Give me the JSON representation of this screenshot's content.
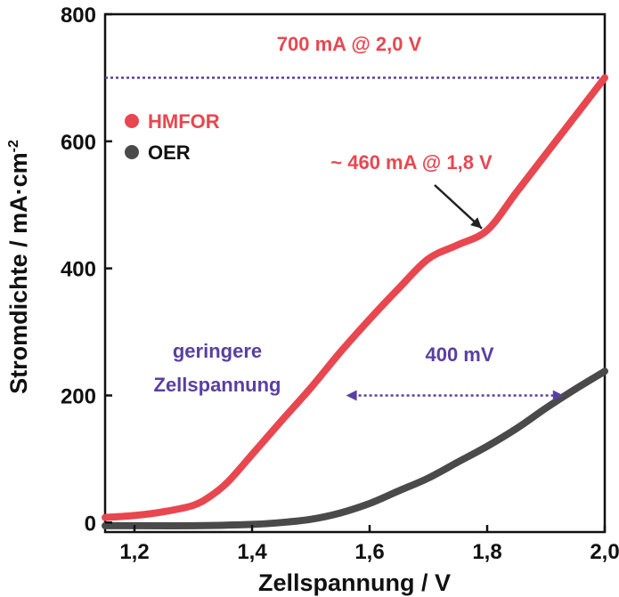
{
  "chart_data": {
    "type": "line",
    "xlabel": "Zellspannung / V",
    "ylabel_main": "Stromdichte / mA·cm",
    "ylabel_sup": "-2",
    "xlim": [
      1.15,
      2.0
    ],
    "ylim": [
      -15,
      800
    ],
    "x_ticks": [
      1.2,
      1.4,
      1.6,
      1.8,
      2.0
    ],
    "x_tick_labels": [
      "1,2",
      "1,4",
      "1,6",
      "1,8",
      "2,0"
    ],
    "y_ticks": [
      0,
      200,
      400,
      600,
      800
    ],
    "y_tick_labels": [
      "0",
      "200",
      "400",
      "600",
      "800"
    ],
    "grid": false,
    "legend_position": "top-left",
    "series": [
      {
        "name": "HMFOR",
        "color": "#e8474f",
        "x": [
          1.15,
          1.2,
          1.25,
          1.3,
          1.33,
          1.36,
          1.4,
          1.45,
          1.5,
          1.55,
          1.6,
          1.65,
          1.7,
          1.75,
          1.8,
          1.85,
          1.9,
          1.95,
          2.0
        ],
        "y": [
          8,
          11,
          17,
          27,
          42,
          65,
          107,
          160,
          212,
          268,
          320,
          369,
          415,
          437,
          460,
          520,
          580,
          640,
          700
        ]
      },
      {
        "name": "OER",
        "color": "#4a4a4a",
        "x": [
          1.15,
          1.2,
          1.3,
          1.4,
          1.45,
          1.5,
          1.55,
          1.6,
          1.65,
          1.7,
          1.75,
          1.8,
          1.85,
          1.9,
          1.95,
          2.0
        ],
        "y": [
          -5,
          -5,
          -5,
          -3,
          0,
          5,
          15,
          30,
          50,
          70,
          95,
          120,
          148,
          180,
          210,
          238
        ]
      }
    ],
    "reference_line": {
      "y": 700,
      "color": "#5a3fa0"
    },
    "annotations": {
      "at_2v": "700 mA @ 2,0 V",
      "at_18v": "~ 460 mA @ 1,8 V",
      "lower_voltage_line1": "geringere",
      "lower_voltage_line2": "Zellspannung",
      "delta": "400 mV"
    },
    "delta_arrow": {
      "x_from": 1.56,
      "x_to": 1.93,
      "y": 200,
      "color": "#5a3fa0"
    },
    "callout_point": {
      "x": 1.8,
      "y": 460
    },
    "annotation_colors": {
      "red": "#e8474f",
      "purple": "#5a3fa0",
      "dark": "#222222"
    }
  }
}
